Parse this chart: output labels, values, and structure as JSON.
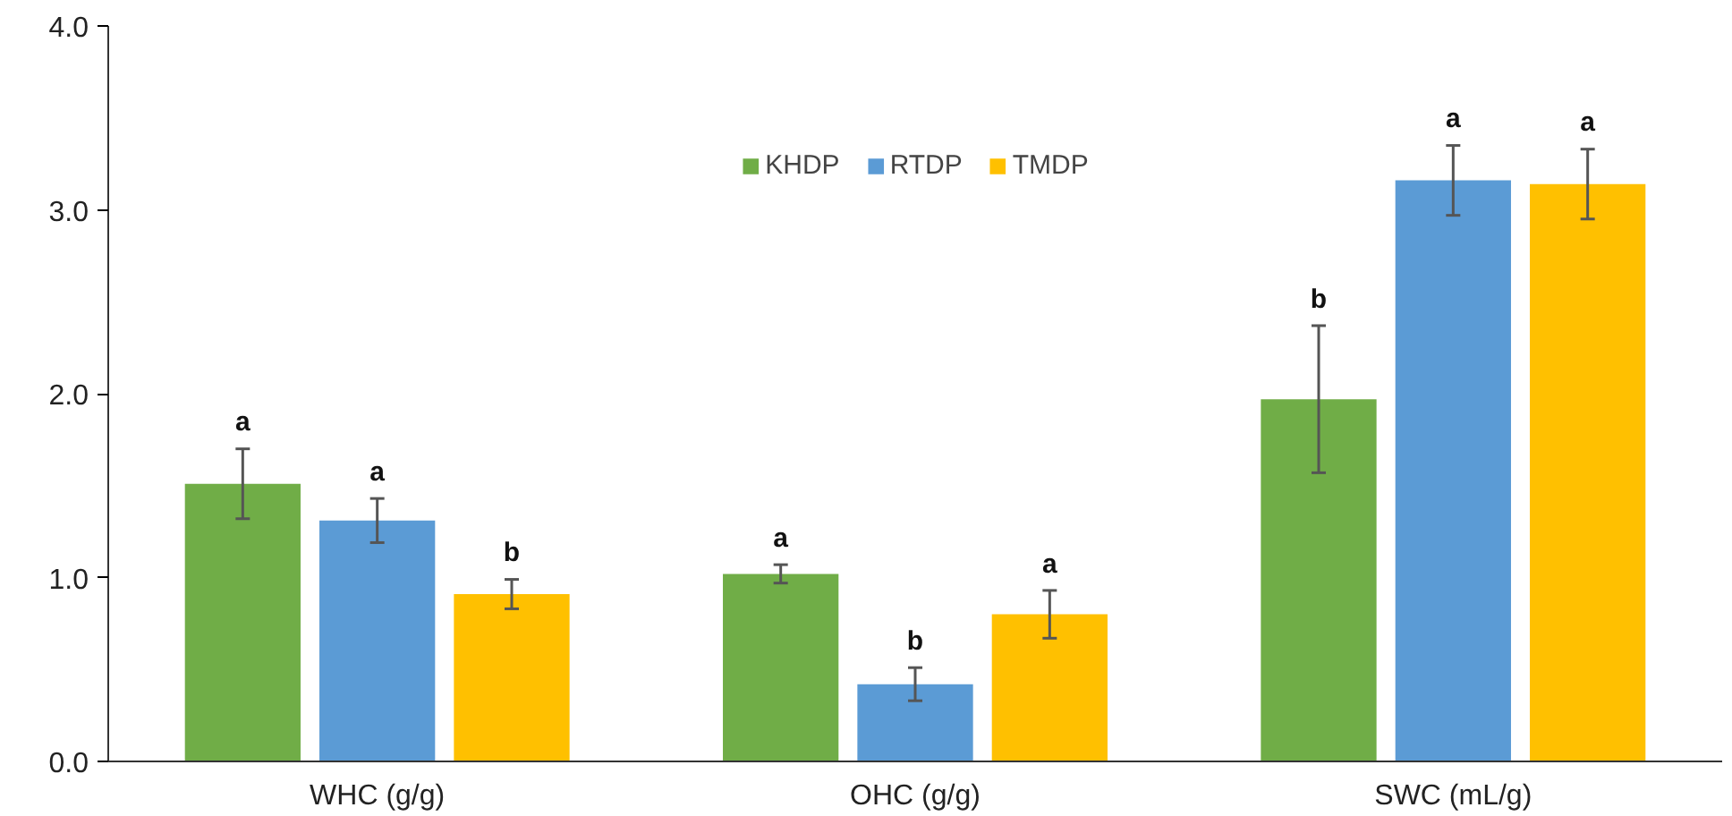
{
  "chart_data": {
    "type": "bar",
    "categories": [
      "WHC (g/g)",
      "OHC (g/g)",
      "SWC (mL/g)"
    ],
    "series": [
      {
        "name": "KHDP",
        "color": "#70ad47",
        "values": [
          1.51,
          1.02,
          1.97
        ],
        "errors": [
          0.19,
          0.05,
          0.4
        ]
      },
      {
        "name": "RTDP",
        "color": "#5b9bd5",
        "values": [
          1.31,
          0.42,
          3.16
        ],
        "errors": [
          0.12,
          0.09,
          0.19
        ]
      },
      {
        "name": "TMDP",
        "color": "#ffc000",
        "values": [
          0.91,
          0.8,
          3.14
        ],
        "errors": [
          0.08,
          0.13,
          0.19
        ]
      }
    ],
    "ylim": [
      0,
      4
    ],
    "yticks": [
      {
        "value": 0,
        "label": "0.0"
      },
      {
        "value": 1,
        "label": "1.0"
      },
      {
        "value": 2,
        "label": "2.0"
      },
      {
        "value": 3,
        "label": "3.0"
      },
      {
        "value": 4,
        "label": "4.0"
      }
    ],
    "annotations": [
      "a",
      "a",
      "b",
      "a",
      "b",
      "a",
      "b",
      "a",
      "a"
    ],
    "legend": "top",
    "grid": false
  }
}
